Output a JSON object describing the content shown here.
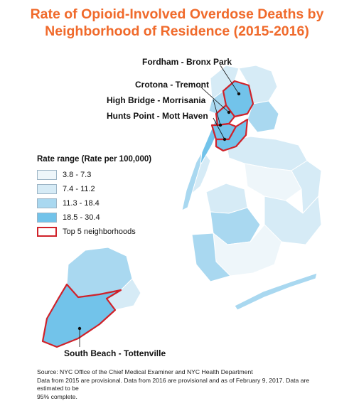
{
  "title_line1": "Rate of Opioid-Involved Overdose Deaths by",
  "title_line2": "Neighborhood of Residence (2015-2016)",
  "callouts": {
    "fordham": "Fordham - Bronx Park",
    "crotona": "Crotona - Tremont",
    "highbridge": "High Bridge - Morrisania",
    "huntspoint": "Hunts Point - Mott Haven",
    "southbeach": "South Beach - Tottenville"
  },
  "legend": {
    "title": "Rate range (Rate per 100,000)",
    "items": [
      {
        "label": "3.8 - 7.3",
        "color": "#eef6fa"
      },
      {
        "label": "7.4 - 11.2",
        "color": "#d6ebf6"
      },
      {
        "label": "11.3 - 18.4",
        "color": "#a9d8f0"
      },
      {
        "label": "18.5 - 30.4",
        "color": "#72c3ea"
      }
    ],
    "outline_label": "Top 5 neighborhoods",
    "outline_color": "#d0222a"
  },
  "source_lines": [
    "Source: NYC Office of the Chief Medical Examiner and NYC Health Department",
    "Data from 2015 are provisional. Data from 2016 are provisional and as of February 9, 2017. Data are estimated to be",
    "95% complete."
  ]
}
